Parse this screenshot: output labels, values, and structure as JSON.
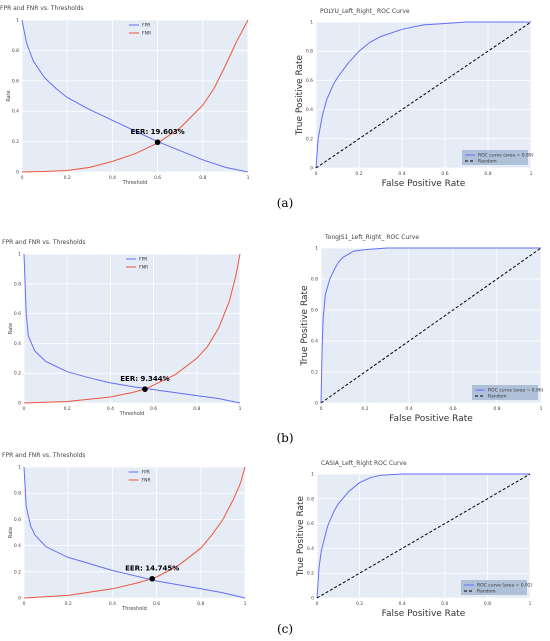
{
  "chart_data": [
    {
      "type": "line",
      "title": "FPR and FNR vs. Thresholds",
      "xlabel": "Threshold",
      "ylabel": "Rate",
      "xlim": [
        0,
        1
      ],
      "ylim": [
        0,
        1
      ],
      "x_ticks": [
        "0",
        "0.2",
        "0.4",
        "0.6",
        "0.8",
        "1"
      ],
      "y_ticks": [
        "0",
        "0.2",
        "0.4",
        "0.6",
        "0.8",
        "1"
      ],
      "series": [
        {
          "name": "FPR",
          "color": "#636efa",
          "x": [
            0,
            0.02,
            0.05,
            0.1,
            0.15,
            0.2,
            0.3,
            0.4,
            0.5,
            0.6,
            0.7,
            0.8,
            0.9,
            1.0
          ],
          "y": [
            1.0,
            0.85,
            0.73,
            0.62,
            0.55,
            0.49,
            0.41,
            0.34,
            0.27,
            0.2,
            0.14,
            0.08,
            0.03,
            0.0
          ]
        },
        {
          "name": "FNR",
          "color": "#ef553b",
          "x": [
            0,
            0.1,
            0.2,
            0.3,
            0.4,
            0.5,
            0.6,
            0.7,
            0.8,
            0.85,
            0.9,
            0.95,
            1.0
          ],
          "y": [
            0.0,
            0.003,
            0.01,
            0.03,
            0.07,
            0.12,
            0.19,
            0.29,
            0.44,
            0.55,
            0.7,
            0.86,
            1.0
          ]
        }
      ],
      "annotation": {
        "text": "EER: 19.603%",
        "x": 0.6,
        "y": 0.196
      }
    },
    {
      "type": "line",
      "title": "POLYU_Left_Right_ ROC Curve",
      "xlabel": "False Positive Rate",
      "ylabel": "True Positive Rate",
      "xlim": [
        0,
        1
      ],
      "ylim": [
        0,
        1
      ],
      "x_ticks": [
        "0",
        "0.2",
        "0.4",
        "0.6",
        "0.8",
        "1"
      ],
      "y_ticks": [
        "0",
        "0.2",
        "0.4",
        "0.6",
        "0.8",
        "1"
      ],
      "series": [
        {
          "name": "ROC curve (area = 0.89)",
          "color": "#636efa",
          "x": [
            0,
            0.01,
            0.03,
            0.05,
            0.08,
            0.1,
            0.15,
            0.2,
            0.25,
            0.3,
            0.4,
            0.5,
            0.6,
            0.7,
            0.8,
            1.0
          ],
          "y": [
            0,
            0.2,
            0.36,
            0.47,
            0.57,
            0.62,
            0.72,
            0.8,
            0.86,
            0.9,
            0.95,
            0.98,
            0.99,
            1.0,
            1.0,
            1.0
          ]
        },
        {
          "name": "Random",
          "color": "#000000",
          "dash": true,
          "x": [
            0,
            1
          ],
          "y": [
            0,
            1
          ]
        }
      ]
    },
    {
      "type": "line",
      "title": "FPR and FNR vs. Thresholds",
      "xlabel": "Threshold",
      "ylabel": "Rate",
      "xlim": [
        0,
        1
      ],
      "ylim": [
        0,
        1
      ],
      "x_ticks": [
        "0",
        "0.2",
        "0.4",
        "0.6",
        "0.8",
        "1"
      ],
      "y_ticks": [
        "0",
        "0.2",
        "0.4",
        "0.6",
        "0.8",
        "1"
      ],
      "series": [
        {
          "name": "FPR",
          "color": "#636efa",
          "x": [
            0,
            0.01,
            0.02,
            0.05,
            0.1,
            0.2,
            0.3,
            0.4,
            0.5,
            0.6,
            0.7,
            0.8,
            0.9,
            1.0
          ],
          "y": [
            1.0,
            0.6,
            0.45,
            0.35,
            0.28,
            0.21,
            0.17,
            0.135,
            0.11,
            0.09,
            0.07,
            0.05,
            0.03,
            0.0
          ]
        },
        {
          "name": "FNR",
          "color": "#ef553b",
          "x": [
            0,
            0.2,
            0.4,
            0.5,
            0.56,
            0.6,
            0.7,
            0.8,
            0.85,
            0.9,
            0.95,
            0.98,
            1.0
          ],
          "y": [
            0.0,
            0.01,
            0.04,
            0.07,
            0.093,
            0.12,
            0.19,
            0.3,
            0.38,
            0.5,
            0.68,
            0.85,
            1.0
          ]
        }
      ],
      "annotation": {
        "text": "EER: 9.344%",
        "x": 0.56,
        "y": 0.093
      }
    },
    {
      "type": "line",
      "title": "TongJS1_Left_Right_ ROC Curve",
      "xlabel": "False Positive Rate",
      "ylabel": "True Positive Rate",
      "xlim": [
        0,
        1
      ],
      "ylim": [
        0,
        1
      ],
      "x_ticks": [
        "0",
        "0.2",
        "0.4",
        "0.6",
        "0.8",
        "1"
      ],
      "y_ticks": [
        "0",
        "0.2",
        "0.4",
        "0.6",
        "0.8",
        "1"
      ],
      "series": [
        {
          "name": "ROC curve (area = 0.96)",
          "color": "#636efa",
          "x": [
            0,
            0.005,
            0.01,
            0.02,
            0.04,
            0.06,
            0.08,
            0.1,
            0.15,
            0.2,
            0.3,
            0.5,
            1.0
          ],
          "y": [
            0,
            0.35,
            0.55,
            0.7,
            0.8,
            0.86,
            0.91,
            0.94,
            0.98,
            0.99,
            1.0,
            1.0,
            1.0
          ]
        },
        {
          "name": "Random",
          "color": "#000000",
          "dash": true,
          "x": [
            0,
            1
          ],
          "y": [
            0,
            1
          ]
        }
      ]
    },
    {
      "type": "line",
      "title": "FPR and FNR vs. Thresholds",
      "xlabel": "Threshold",
      "ylabel": "Rate",
      "xlim": [
        0,
        1
      ],
      "ylim": [
        0,
        1
      ],
      "x_ticks": [
        "0",
        "0.2",
        "0.4",
        "0.6",
        "0.8",
        "1"
      ],
      "y_ticks": [
        "0",
        "0.2",
        "0.4",
        "0.6",
        "0.8",
        "1"
      ],
      "series": [
        {
          "name": "FPR",
          "color": "#636efa",
          "x": [
            0,
            0.01,
            0.03,
            0.05,
            0.1,
            0.2,
            0.3,
            0.4,
            0.5,
            0.6,
            0.7,
            0.8,
            0.9,
            1.0
          ],
          "y": [
            1.0,
            0.7,
            0.55,
            0.48,
            0.39,
            0.31,
            0.26,
            0.21,
            0.17,
            0.13,
            0.1,
            0.07,
            0.04,
            0.0
          ]
        },
        {
          "name": "FNR",
          "color": "#ef553b",
          "x": [
            0,
            0.2,
            0.4,
            0.5,
            0.58,
            0.6,
            0.7,
            0.8,
            0.85,
            0.9,
            0.95,
            0.98,
            1.0
          ],
          "y": [
            0.0,
            0.02,
            0.07,
            0.11,
            0.147,
            0.16,
            0.25,
            0.38,
            0.48,
            0.6,
            0.76,
            0.88,
            1.0
          ]
        }
      ],
      "annotation": {
        "text": "EER: 14.745%",
        "x": 0.58,
        "y": 0.147
      }
    },
    {
      "type": "line",
      "title": "CASIA_Left_Right ROC Curve",
      "xlabel": "False Positive Rate",
      "ylabel": "True Positive Rate",
      "xlim": [
        0,
        1
      ],
      "ylim": [
        0,
        1
      ],
      "x_ticks": [
        "0",
        "0.2",
        "0.4",
        "0.6",
        "0.8",
        "1"
      ],
      "y_ticks": [
        "0",
        "0.2",
        "0.4",
        "0.6",
        "0.8",
        "1"
      ],
      "series": [
        {
          "name": "ROC curve (area = 0.92)",
          "color": "#636efa",
          "x": [
            0,
            0.01,
            0.02,
            0.05,
            0.08,
            0.1,
            0.15,
            0.2,
            0.25,
            0.3,
            0.4,
            0.5,
            1.0
          ],
          "y": [
            0,
            0.25,
            0.38,
            0.58,
            0.7,
            0.76,
            0.86,
            0.93,
            0.97,
            0.99,
            1.0,
            1.0,
            1.0
          ]
        },
        {
          "name": "Random",
          "color": "#000000",
          "dash": true,
          "x": [
            0,
            1
          ],
          "y": [
            0,
            1
          ]
        }
      ]
    }
  ],
  "captions": [
    "(a)",
    "(b)",
    "(c)"
  ]
}
